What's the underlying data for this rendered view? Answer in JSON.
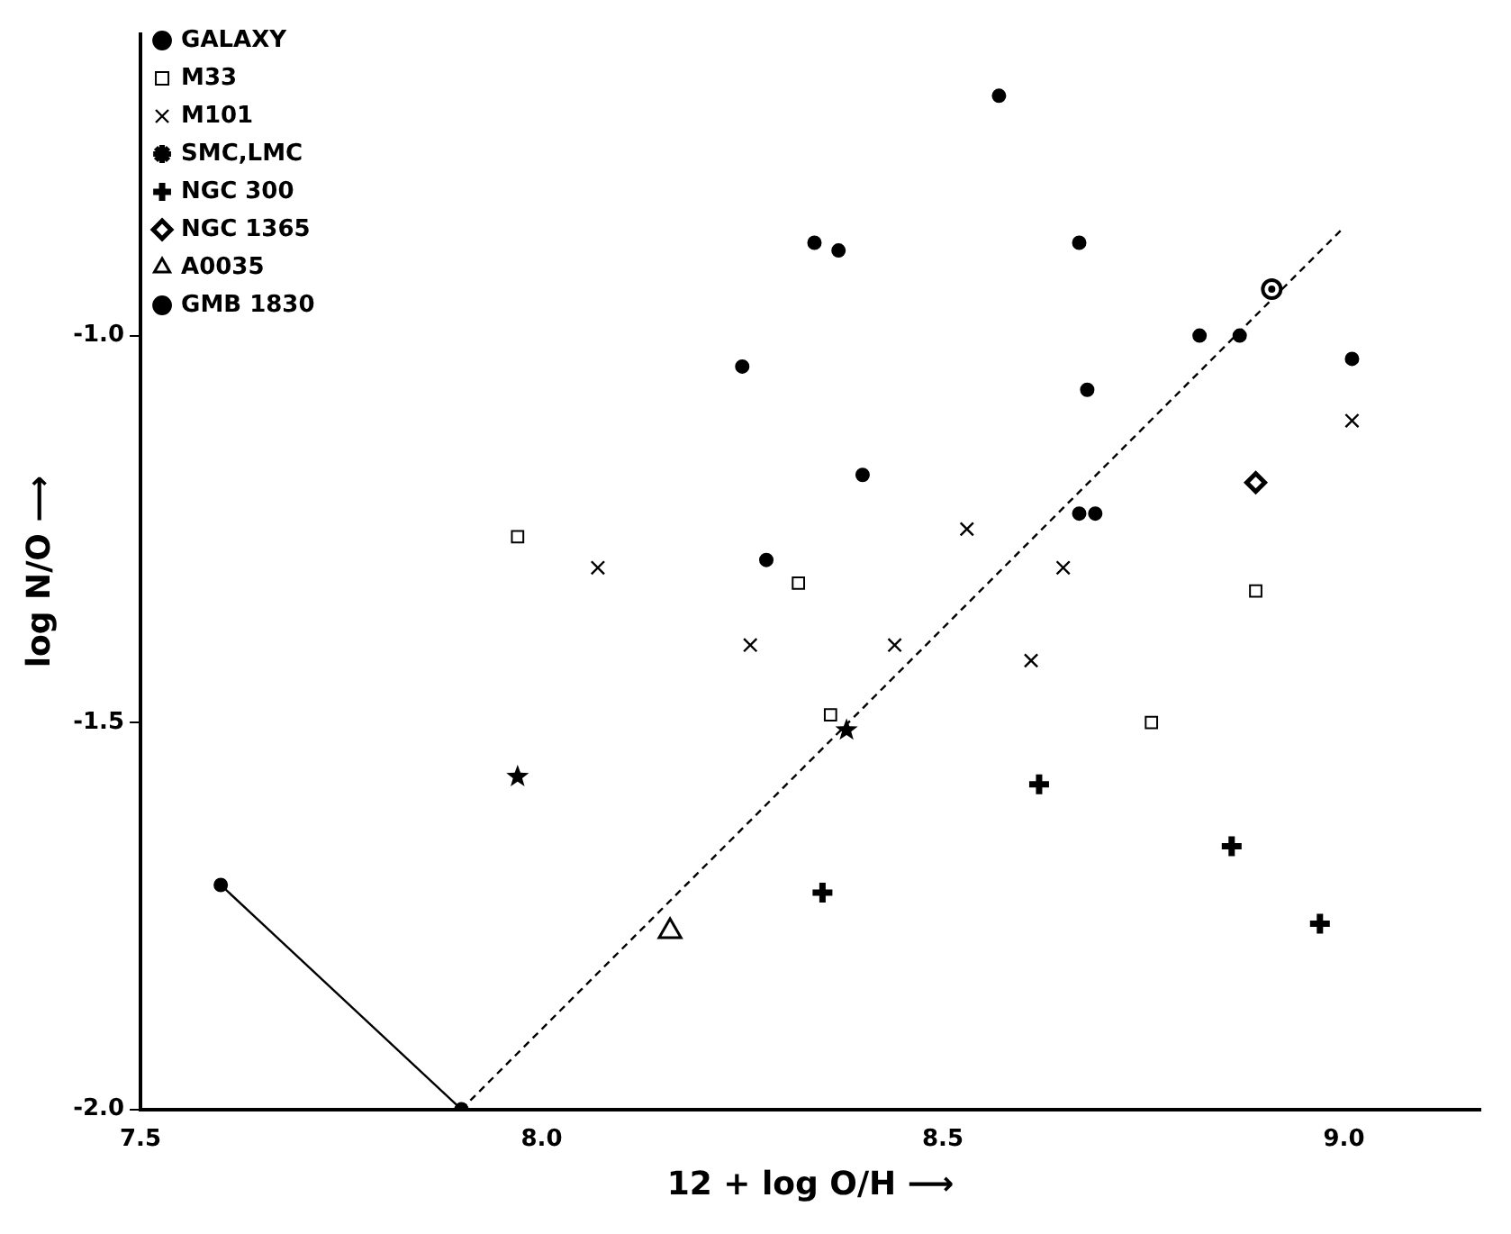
{
  "chart_data": {
    "type": "scatter",
    "xlabel": "12 + log O/H ⟶",
    "ylabel": "log N/O ⟶",
    "xlim": [
      7.5,
      9.17
    ],
    "ylim": [
      -2.0,
      -0.61
    ],
    "xticks": [
      7.5,
      {
        "value": 8,
        "label": "8.0"
      },
      8.5,
      {
        "value": 9,
        "label": "9.0"
      }
    ],
    "yticks": [
      {
        "value": -2,
        "label": "-2.0"
      },
      -1.5,
      {
        "value": -1,
        "label": "-1.0"
      }
    ],
    "grid": false,
    "legend": "top left",
    "series": [
      {
        "name": "GALAXY",
        "color": "#000000",
        "marker": "circle",
        "x": [
          8.57,
          8.34,
          8.37,
          8.67,
          8.82,
          8.87,
          8.25,
          8.68,
          9.01,
          8.4,
          8.28,
          8.67,
          8.69
        ],
        "values": [
          -0.69,
          -0.88,
          -0.89,
          -0.88,
          -1.0,
          -1.0,
          -1.04,
          -1.07,
          -1.03,
          -1.18,
          -1.29,
          -1.23,
          -1.23
        ]
      },
      {
        "name": "M33",
        "color": "#000000",
        "marker": "square",
        "x": [
          7.97,
          8.32,
          8.36,
          8.76,
          8.89
        ],
        "values": [
          -1.26,
          -1.32,
          -1.49,
          -1.5,
          -1.33
        ]
      },
      {
        "name": "M101",
        "color": "#000000",
        "marker": "cross",
        "x": [
          8.07,
          8.26,
          8.53,
          8.44,
          8.65,
          8.61,
          9.01
        ],
        "values": [
          -1.3,
          -1.4,
          -1.25,
          -1.4,
          -1.3,
          -1.42,
          -1.11
        ]
      },
      {
        "name": "SMC,LMC",
        "color": "#000000",
        "marker": "star",
        "x": [
          7.97,
          8.38
        ],
        "values": [
          -1.57,
          -1.51
        ]
      },
      {
        "name": "NGC 300",
        "color": "#000000",
        "marker": "plus",
        "x": [
          8.62,
          8.35,
          8.86,
          8.97
        ],
        "values": [
          -1.58,
          -1.72,
          -1.66,
          -1.76
        ]
      },
      {
        "name": "NGC 1365",
        "color": "#000000",
        "marker": "diamond",
        "x": [
          8.89
        ],
        "values": [
          -1.19
        ]
      },
      {
        "name": "A0035",
        "color": "#000000",
        "marker": "triangle",
        "x": [
          8.16
        ],
        "values": [
          -1.77
        ]
      },
      {
        "name": "GMB 1830",
        "type": "line",
        "color": "#000000",
        "marker": "circle",
        "line_style": "solid",
        "x": [
          7.6,
          7.9
        ],
        "values": [
          -1.71,
          -2.0
        ]
      },
      {
        "color": "#000000",
        "marker": "circle",
        "x": [
          8.91
        ],
        "values": [
          -0.94
        ]
      },
      {
        "type": "line",
        "color": "#000000",
        "marker": "none",
        "line_style": "dashed",
        "x": [
          7.9,
          9.0
        ],
        "values": [
          -2.0,
          -0.86
        ]
      }
    ]
  }
}
